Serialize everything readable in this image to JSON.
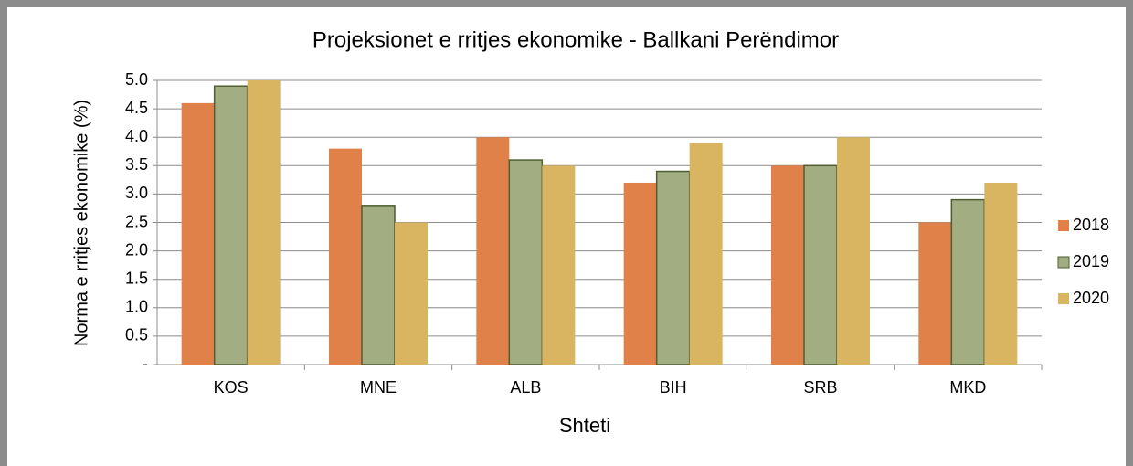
{
  "chart_data": {
    "type": "bar",
    "title": "Projeksionet e rritjes ekonomike - Ballkani Perëndimor",
    "x_label": "Shteti",
    "y_label": "Norma e rritjes ekonomike (%)",
    "categories": [
      "KOS",
      "MNE",
      "ALB",
      "BIH",
      "SRB",
      "MKD"
    ],
    "series": [
      {
        "name": "2018",
        "color": "#e0814a",
        "values": [
          4.6,
          3.8,
          4.0,
          3.2,
          3.5,
          2.5
        ]
      },
      {
        "name": "2019",
        "color": "#a3ad82",
        "values": [
          4.9,
          2.8,
          3.6,
          3.4,
          3.5,
          2.9
        ]
      },
      {
        "name": "2020",
        "color": "#d9b562",
        "values": [
          5.0,
          2.5,
          3.5,
          3.9,
          4.0,
          3.2
        ]
      }
    ],
    "ylim": [
      0,
      5
    ],
    "yticks": [
      {
        "value": 0,
        "label": "-"
      },
      0.5,
      {
        "value": 1,
        "label": "1.0"
      },
      1.5,
      {
        "value": 2,
        "label": "2.0"
      },
      2.5,
      {
        "value": 3,
        "label": "3.0"
      },
      3.5,
      {
        "value": 4,
        "label": "4.0"
      },
      4.5,
      {
        "value": 5,
        "label": "5.0"
      }
    ],
    "grid": true,
    "legend": "right"
  }
}
